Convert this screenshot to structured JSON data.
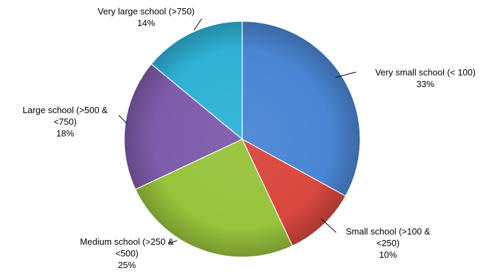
{
  "chart_data": {
    "type": "pie",
    "title": "",
    "start_angle_deg": 0,
    "direction": "clockwise",
    "slices": [
      {
        "lines": [
          "Very small school (< 100)"
        ],
        "percent": "33%",
        "value": 33,
        "color": "#4a86d4"
      },
      {
        "lines": [
          "Small school (>100 &",
          "<250)"
        ],
        "percent": "10%",
        "value": 10,
        "color": "#d9483f"
      },
      {
        "lines": [
          "Medium school (>250 &",
          "<500)"
        ],
        "percent": "25%",
        "value": 25,
        "color": "#97c43c"
      },
      {
        "lines": [
          "Large school (>500 &",
          "<750)"
        ],
        "percent": "18%",
        "value": 18,
        "color": "#7f5cab"
      },
      {
        "lines": [
          "Very large school (>750)"
        ],
        "percent": "14%",
        "value": 14,
        "color": "#2fb2d6"
      }
    ]
  }
}
